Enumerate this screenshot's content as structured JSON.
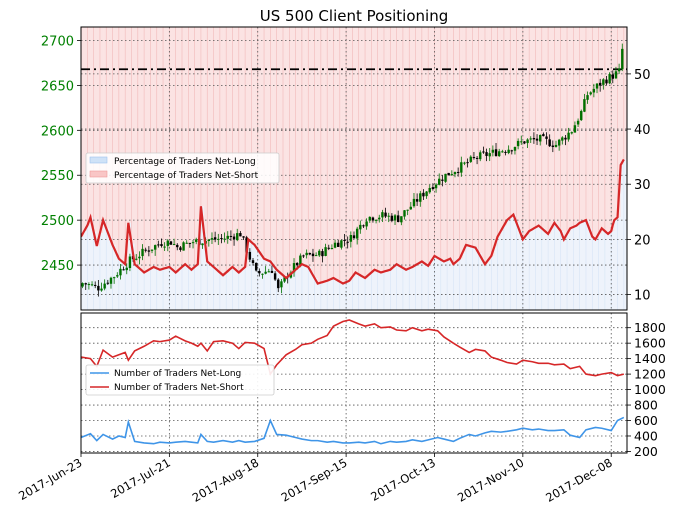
{
  "chart_data": [
    {
      "type": "candlestick-with-sentiment-line",
      "title": "US 500 Client Positioning",
      "left_axis": {
        "ticks": [
          2450,
          2500,
          2550,
          2600,
          2650,
          2700
        ],
        "range": [
          2400,
          2715
        ],
        "color": "#008000"
      },
      "right_axis": {
        "ticks": [
          10,
          20,
          30,
          40,
          50
        ],
        "range": [
          7.2,
          58.5
        ],
        "color": "#000000"
      },
      "reference_line": {
        "price": 2668,
        "style": "dash-dot"
      },
      "legend": {
        "position": "middle-left",
        "entries": [
          {
            "label": "Percentage of Traders Net-Long",
            "color": "#cfe2f7"
          },
          {
            "label": "Percentage of Traders Net-Short",
            "color": "#f9c6c6"
          }
        ]
      },
      "price_anchor_days": [
        0,
        5,
        10,
        15,
        20,
        25,
        28,
        30,
        35,
        40,
        45,
        50,
        55,
        60,
        62,
        65,
        70,
        75,
        80,
        85,
        90,
        95,
        100,
        105,
        110,
        115,
        120,
        125,
        130,
        135,
        140,
        145,
        150,
        155,
        158,
        160,
        165,
        170,
        171
      ],
      "price_anchor_closes": [
        2430,
        2425,
        2438,
        2455,
        2466,
        2475,
        2476,
        2470,
        2476,
        2478,
        2480,
        2485,
        2440,
        2445,
        2422,
        2440,
        2460,
        2462,
        2474,
        2480,
        2503,
        2505,
        2502,
        2519,
        2537,
        2550,
        2560,
        2570,
        2575,
        2580,
        2588,
        2590,
        2584,
        2600,
        2620,
        2640,
        2655,
        2665,
        2690
      ],
      "net_short_pct_anchor_days": [
        0,
        2,
        3,
        5,
        7,
        10,
        12,
        14,
        15,
        17,
        20,
        23,
        25,
        28,
        30,
        33,
        35,
        37,
        38,
        40,
        43,
        45,
        48,
        50,
        52,
        53,
        55,
        58,
        60,
        62,
        65,
        68,
        70,
        72,
        73,
        75,
        78,
        80,
        83,
        85,
        87,
        90,
        93,
        95,
        98,
        100,
        103,
        105,
        108,
        110,
        112,
        115,
        117,
        118,
        120,
        122,
        125,
        128,
        130,
        132,
        135,
        137,
        140,
        142,
        145,
        148,
        150,
        152,
        153,
        155,
        157,
        158,
        160,
        162,
        163,
        165,
        167,
        168,
        170,
        171,
        172
      ],
      "net_short_pct_anchor_values": [
        20.5,
        22.5,
        24,
        18.8,
        23.5,
        19,
        16.5,
        15.5,
        23,
        15.5,
        14,
        15,
        14.5,
        15,
        14,
        15.5,
        14.5,
        15.5,
        26,
        16,
        14.5,
        13.5,
        15,
        14,
        15,
        20,
        19,
        16.5,
        16,
        14.5,
        13,
        14.5,
        15.5,
        15,
        14,
        12,
        12.5,
        13,
        12,
        12.5,
        14,
        13,
        14.5,
        14,
        14.5,
        15.5,
        14.5,
        15,
        16,
        15.2,
        17,
        16,
        16.5,
        15.5,
        16.5,
        19,
        18.5,
        15.5,
        17,
        20.5,
        23.5,
        24.5,
        20,
        21.5,
        22.5,
        21,
        23,
        21.5,
        20,
        22,
        22.5,
        23,
        23.5,
        20.5,
        20,
        22,
        21,
        21.5,
        26,
        22,
        24.5
      ],
      "net_short_pct_tail": {
        "days": [
          169,
          170,
          171,
          172
        ],
        "values": [
          23.5,
          24,
          33.5,
          34.5
        ]
      }
    },
    {
      "type": "line",
      "y_axis": {
        "ticks": [
          200,
          400,
          600,
          800,
          1000,
          1200,
          1400,
          1600,
          1800
        ],
        "range": [
          180,
          1990
        ]
      },
      "x_axis": {
        "tick_labels": [
          "2017-Jun-23",
          "2017-Jul-21",
          "2017-Aug-18",
          "2017-Sep-15",
          "2017-Oct-13",
          "2017-Nov-10",
          "2017-Dec-08"
        ],
        "tick_days": [
          0,
          28,
          56,
          84,
          112,
          140,
          168
        ]
      },
      "legend": {
        "position": "middle-left",
        "entries": [
          {
            "label": "Number of Traders Net-Long",
            "color": "#3f95e8"
          },
          {
            "label": "Number of Traders Net-Short",
            "color": "#d62728"
          }
        ]
      },
      "series": [
        {
          "name": "Number of Traders Net-Long",
          "color": "#3f95e8",
          "x": [
            0,
            3,
            5,
            7,
            10,
            12,
            14,
            15,
            17,
            20,
            23,
            25,
            28,
            30,
            33,
            35,
            37,
            38,
            40,
            42,
            45,
            48,
            50,
            52,
            55,
            58,
            60,
            62,
            65,
            68,
            70,
            73,
            75,
            78,
            80,
            83,
            85,
            88,
            90,
            93,
            95,
            98,
            100,
            103,
            105,
            108,
            110,
            113,
            115,
            118,
            120,
            123,
            125,
            128,
            130,
            133,
            135,
            138,
            140,
            143,
            145,
            148,
            150,
            153,
            155,
            158,
            160,
            163,
            165,
            168,
            170,
            172
          ],
          "values": [
            380,
            430,
            340,
            420,
            360,
            400,
            380,
            580,
            330,
            310,
            300,
            320,
            310,
            320,
            330,
            320,
            310,
            420,
            330,
            320,
            340,
            320,
            340,
            320,
            330,
            370,
            600,
            420,
            410,
            380,
            360,
            340,
            340,
            320,
            330,
            310,
            310,
            320,
            310,
            330,
            300,
            330,
            320,
            330,
            350,
            330,
            350,
            380,
            360,
            330,
            370,
            420,
            400,
            440,
            460,
            450,
            460,
            480,
            500,
            480,
            490,
            470,
            470,
            480,
            410,
            380,
            480,
            510,
            500,
            470,
            600,
            640
          ]
        },
        {
          "name": "Number of Traders Net-Short",
          "color": "#d62728",
          "x": [
            0,
            3,
            5,
            7,
            10,
            12,
            14,
            15,
            17,
            20,
            23,
            25,
            28,
            30,
            33,
            35,
            37,
            38,
            40,
            42,
            45,
            48,
            50,
            52,
            55,
            58,
            60,
            62,
            65,
            68,
            70,
            73,
            75,
            78,
            80,
            83,
            85,
            88,
            90,
            93,
            95,
            98,
            100,
            103,
            105,
            108,
            110,
            113,
            115,
            118,
            120,
            123,
            125,
            128,
            130,
            133,
            135,
            138,
            140,
            143,
            145,
            148,
            150,
            153,
            155,
            158,
            160,
            163,
            165,
            168,
            170,
            172
          ],
          "values": [
            1420,
            1400,
            1300,
            1510,
            1420,
            1450,
            1480,
            1380,
            1500,
            1560,
            1630,
            1620,
            1640,
            1690,
            1630,
            1600,
            1560,
            1600,
            1500,
            1620,
            1630,
            1600,
            1530,
            1610,
            1600,
            1530,
            1200,
            1320,
            1450,
            1520,
            1580,
            1600,
            1650,
            1700,
            1820,
            1880,
            1900,
            1850,
            1820,
            1850,
            1800,
            1810,
            1770,
            1760,
            1800,
            1760,
            1780,
            1760,
            1680,
            1600,
            1550,
            1480,
            1520,
            1500,
            1420,
            1380,
            1350,
            1330,
            1380,
            1360,
            1340,
            1340,
            1320,
            1330,
            1270,
            1300,
            1200,
            1180,
            1200,
            1220,
            1180,
            1200
          ]
        }
      ]
    }
  ]
}
